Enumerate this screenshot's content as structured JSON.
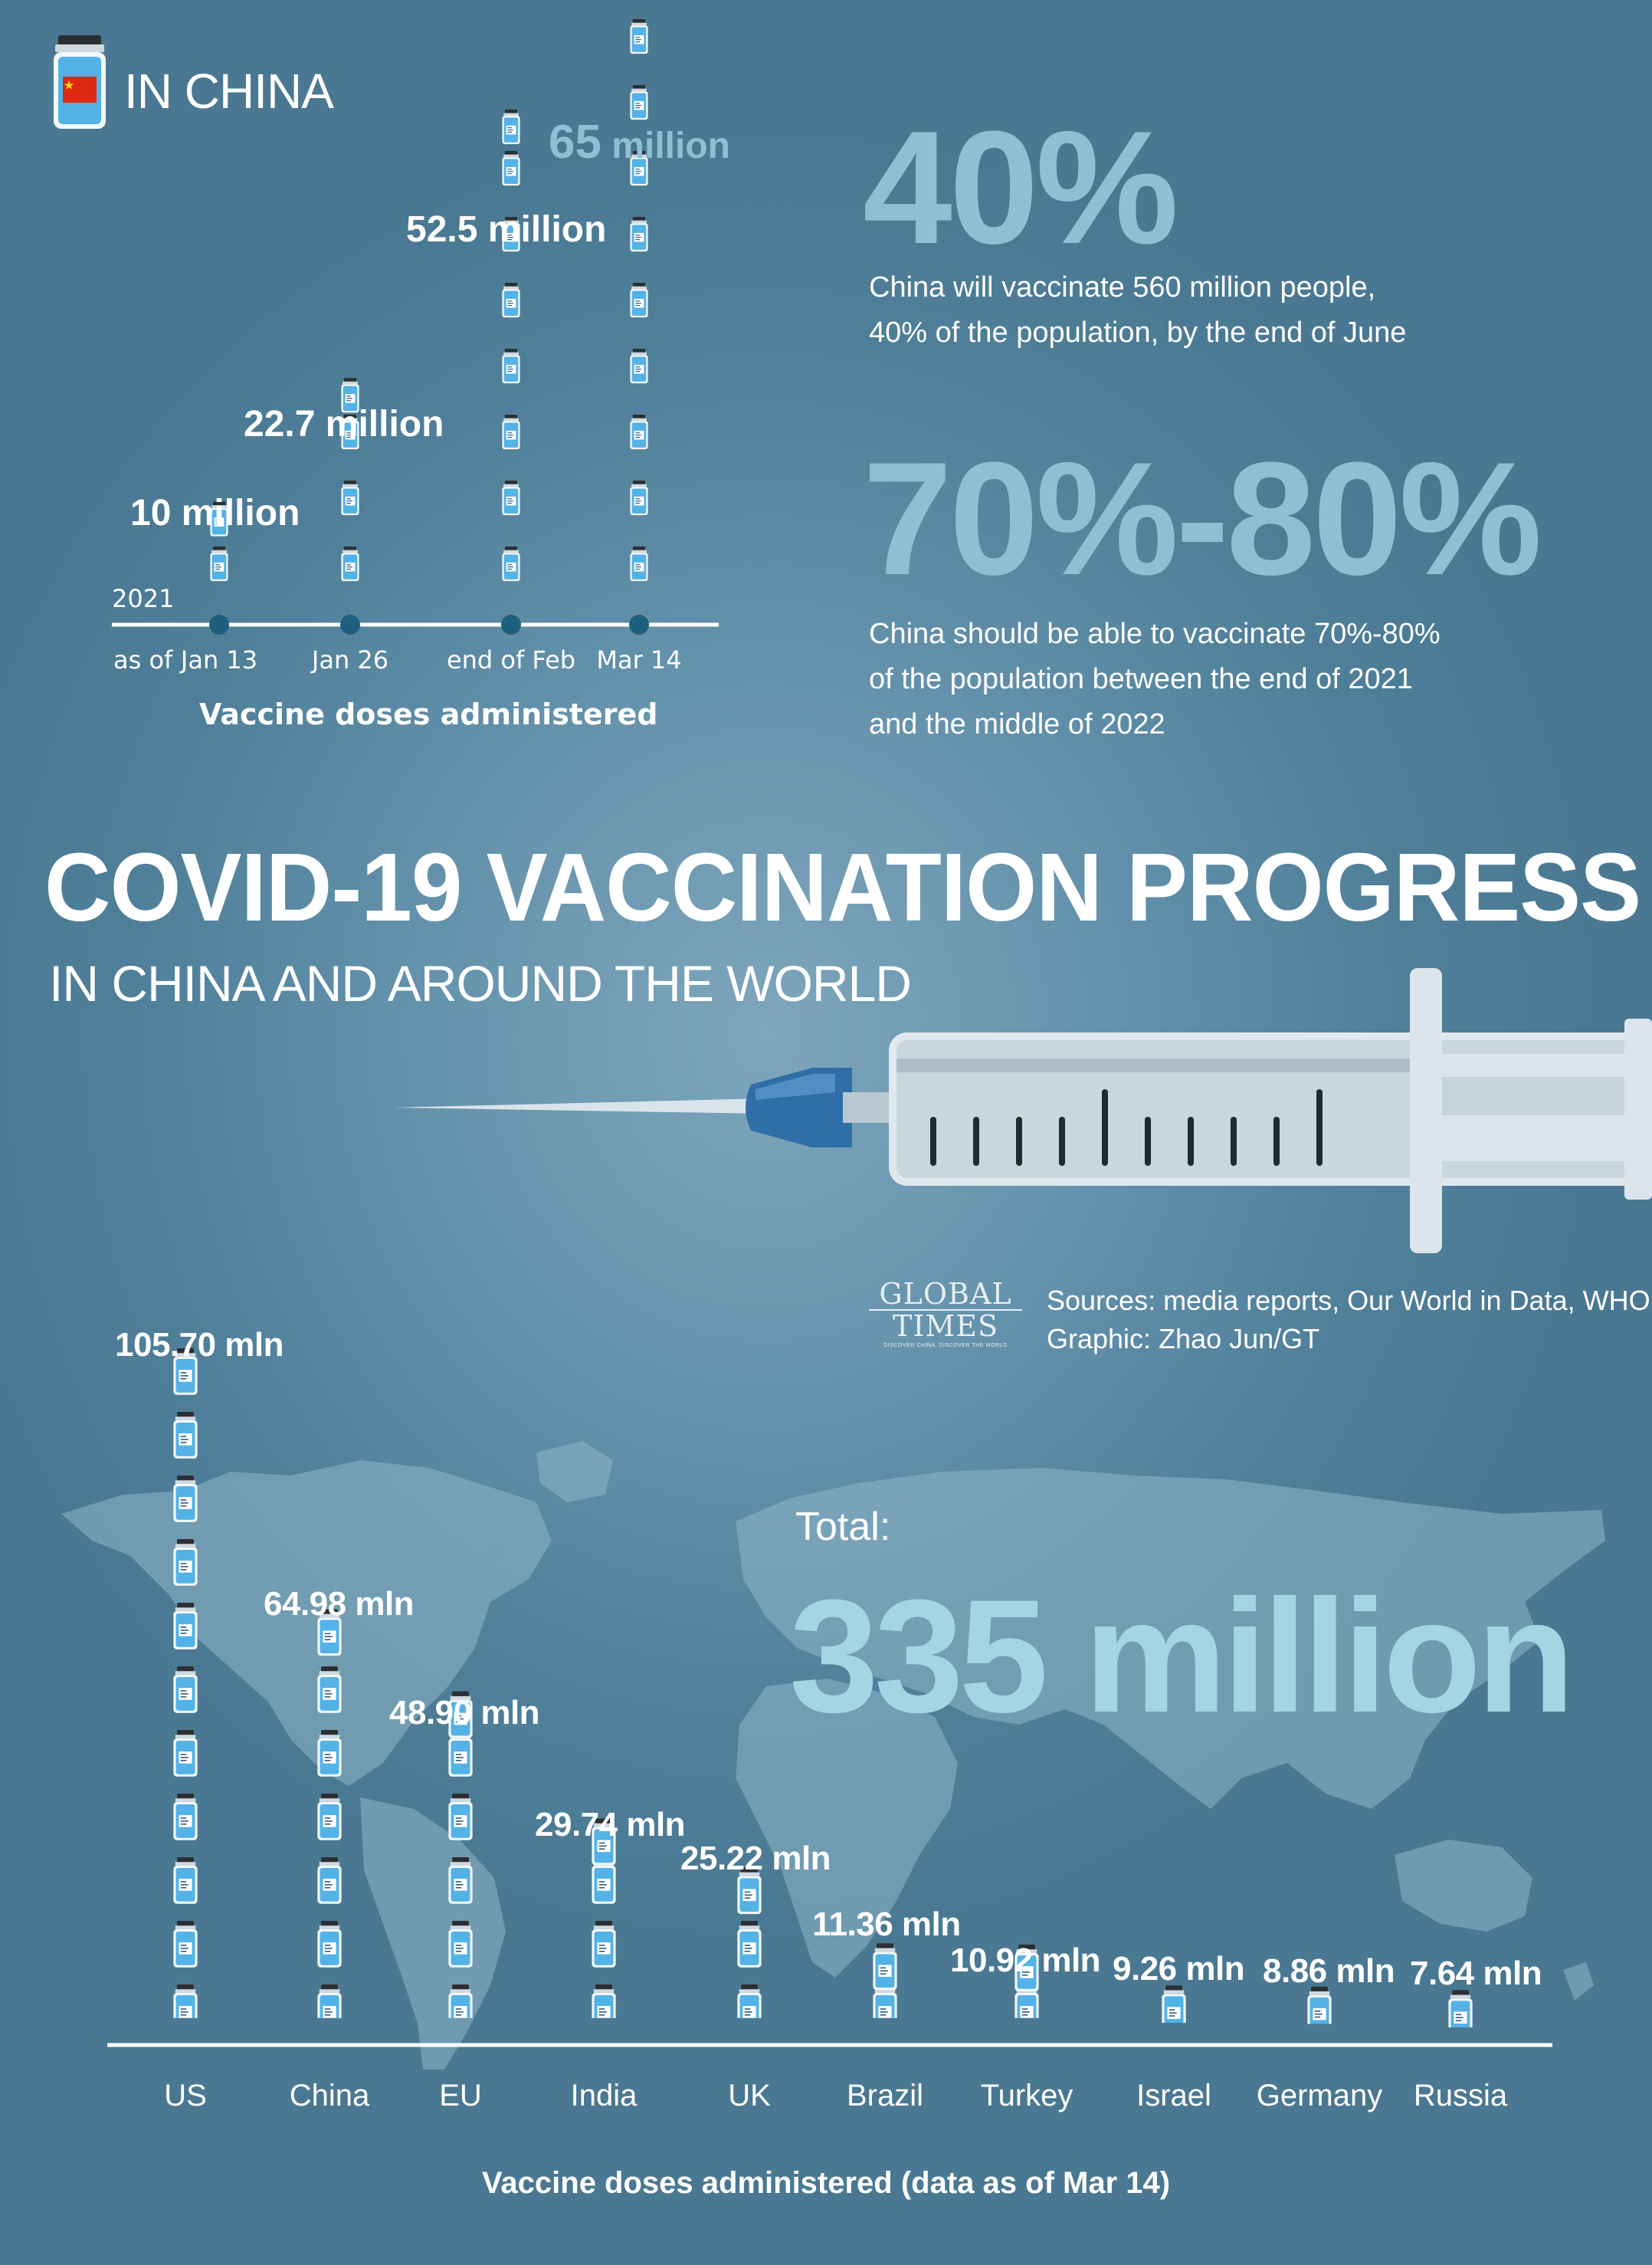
{
  "header": {
    "title": "IN CHINA",
    "icon": "vaccine-bottle-china-flag-icon"
  },
  "china_text": {
    "pct1": "40%",
    "desc1": [
      "China will vaccinate 560 million people,",
      "40% of the population, by the end of June"
    ],
    "pct2": "70%-80%",
    "desc2": [
      "China should be able to vaccinate 70%-80%",
      "of the population between the end of 2021",
      "and the middle of 2022"
    ]
  },
  "main_title": "COVID-19 VACCINATION PROGRESS",
  "sub_title": "IN CHINA AND AROUND THE WORLD",
  "credit": {
    "logo_line1": "GLOBAL",
    "logo_line2": "TIMES",
    "logo_tagline": "DISCOVER CHINA, DISCOVER THE WORLD",
    "sources": "Sources: media reports, Our World in Data, WHO",
    "graphic": "Graphic: Zhao Jun/GT"
  },
  "total": {
    "label": "Total:",
    "value": "335 million"
  },
  "colors": {
    "accent_light": "#8fbfd2",
    "total_color": "#a3d5e2",
    "axis": "#ffffff",
    "marker": "#1f5f7e"
  },
  "chart_data": [
    {
      "type": "bar",
      "title": "",
      "xlabel": "Vaccine doses administered",
      "ylabel": "",
      "year_label": "2021",
      "x_prefix": "as of",
      "categories": [
        "Jan 13",
        "Jan 26",
        "end of Feb",
        "Mar 14"
      ],
      "values": [
        10,
        22.7,
        52.5,
        65
      ],
      "unit": "million",
      "value_labels": [
        "10 million",
        "22.7 million",
        "52.5 million",
        "65"
      ],
      "last_label_suffix": "million"
    },
    {
      "type": "bar",
      "title": "",
      "xlabel": "Vaccine doses administered (data as of Mar 14)",
      "ylabel": "",
      "categories": [
        "US",
        "China",
        "EU",
        "India",
        "UK",
        "Brazil",
        "Turkey",
        "Israel",
        "Germany",
        "Russia"
      ],
      "values": [
        105.7,
        64.98,
        48.9,
        29.74,
        25.22,
        11.36,
        10.92,
        9.26,
        8.86,
        7.64
      ],
      "unit": "mln",
      "value_labels": [
        "105.70 mln",
        "64.98 mln",
        "48.90 mln",
        "29.74 mln",
        "25.22 mln",
        "11.36 mln",
        "10.92 mln",
        "9.26 mln",
        "8.86 mln",
        "7.64 mln"
      ]
    }
  ]
}
